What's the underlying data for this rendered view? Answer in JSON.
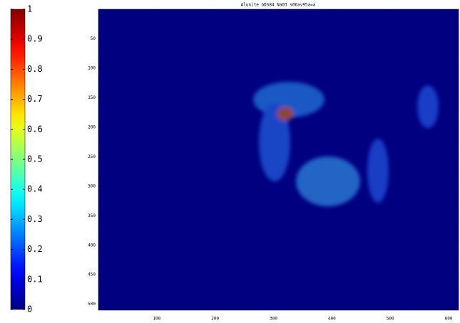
{
  "chart_data": {
    "type": "heatmap",
    "title": "Alunite GDS84 Na03 s06av95a=a",
    "colormap": "jet",
    "background_value": 0,
    "xlim": [
      0,
      617
    ],
    "xticks": [
      100,
      200,
      300,
      400,
      500,
      600
    ],
    "ylim": [
      0,
      510
    ],
    "yticks": [
      50,
      100,
      150,
      200,
      250,
      300,
      350,
      400,
      450,
      500
    ],
    "y_reversed": true,
    "clim": [
      0,
      1
    ],
    "cticks": [
      0,
      0.1,
      0.2,
      0.3,
      0.4,
      0.5,
      0.6,
      0.7,
      0.8,
      0.9,
      1
    ]
  }
}
